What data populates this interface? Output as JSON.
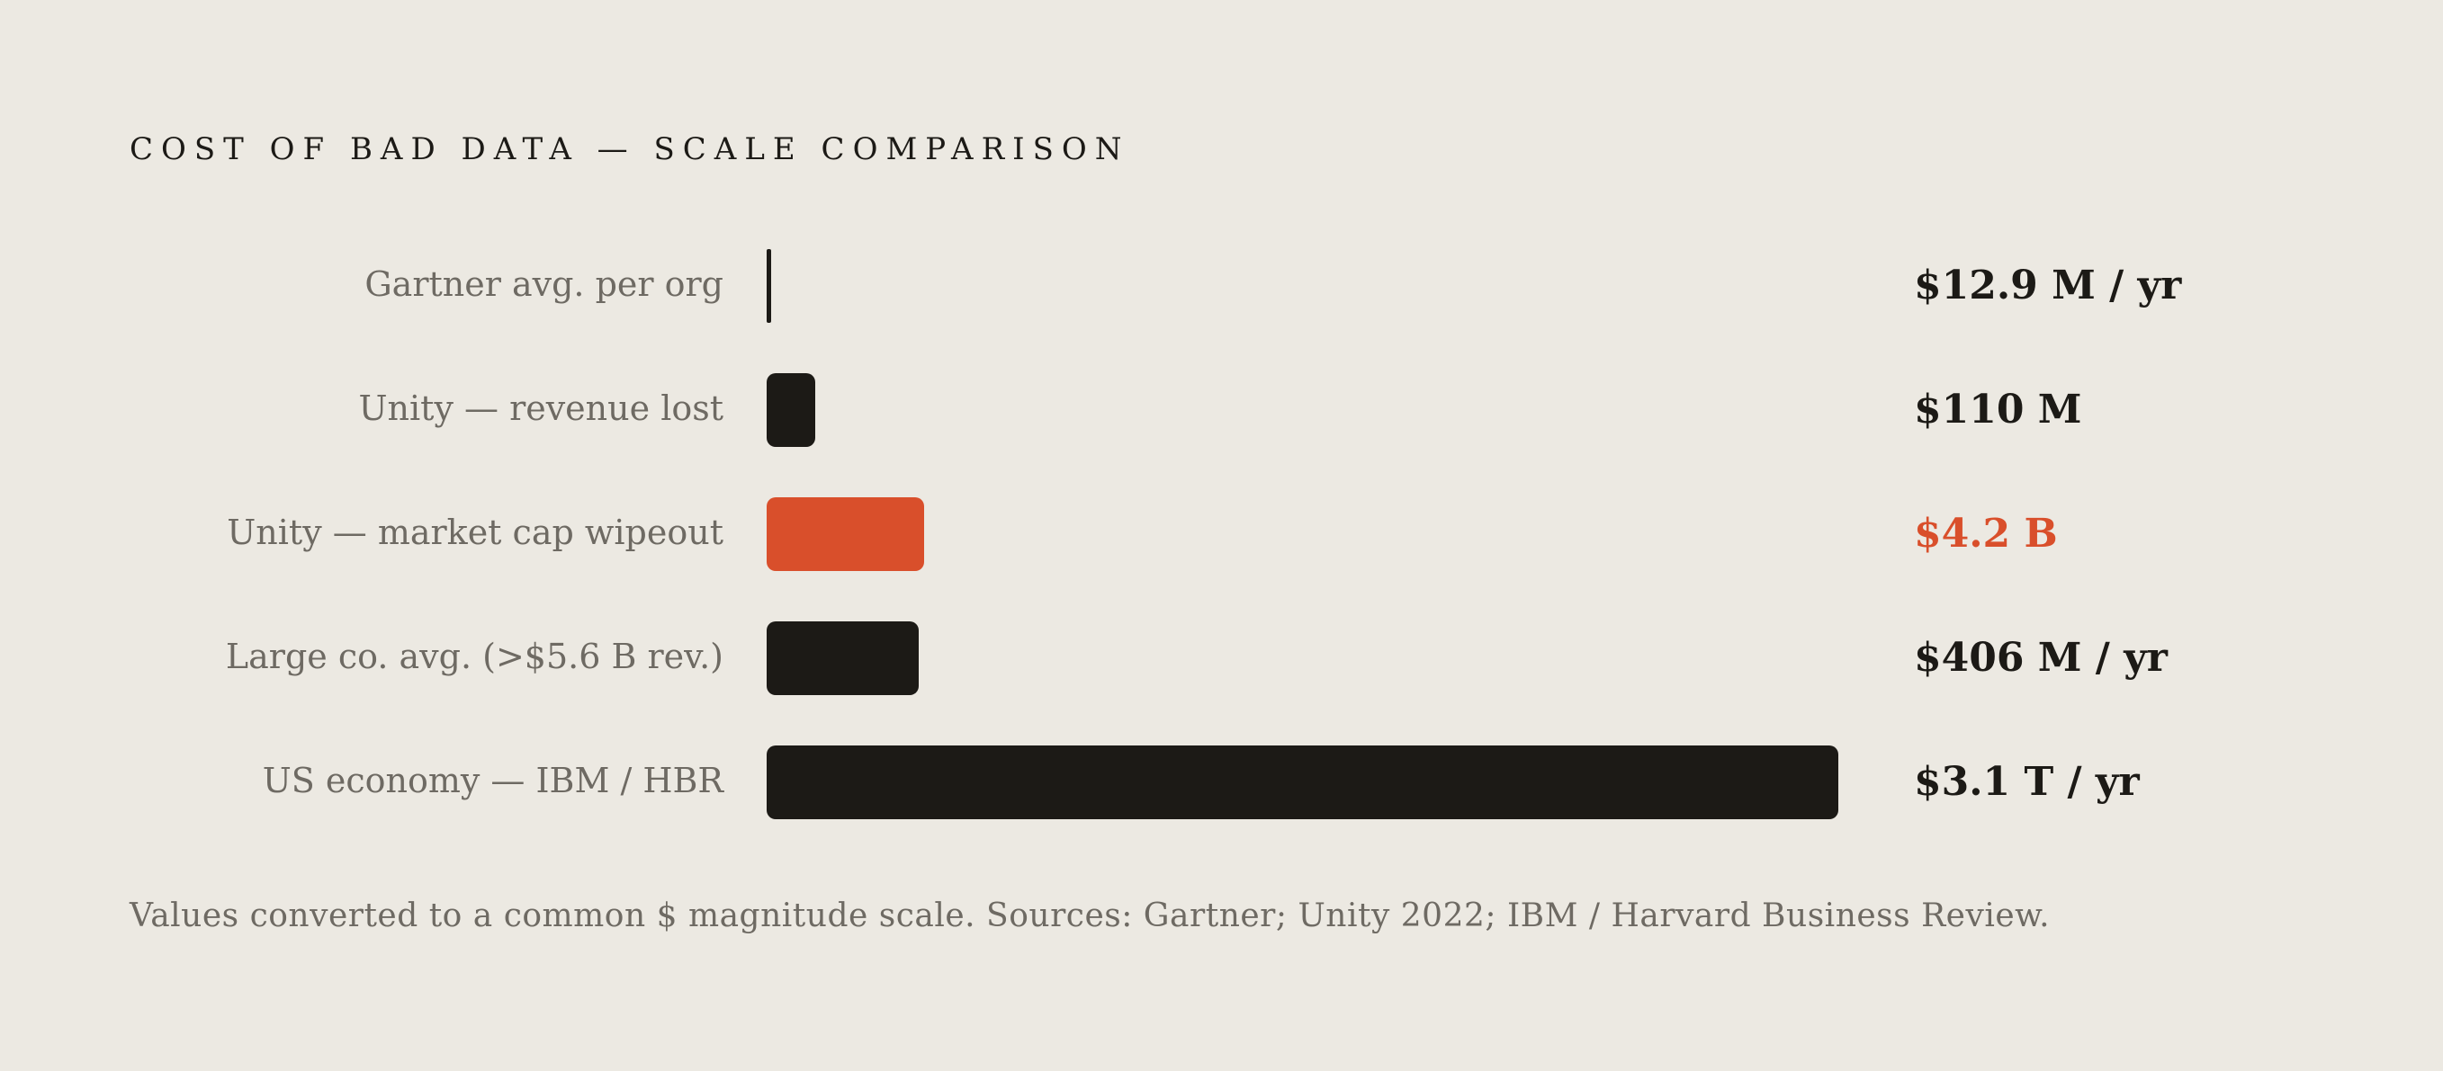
{
  "chart_data": {
    "type": "bar",
    "orientation": "horizontal",
    "title": "COST OF BAD DATA — SCALE COMPARISON",
    "categories": [
      "Gartner avg. per org",
      "Unity — revenue lost",
      "Unity — market cap wipeout",
      "Large co. avg. (>$5.6 B rev.)",
      "US economy — IBM / HBR"
    ],
    "values_usd": [
      12900000,
      110000000,
      4200000000,
      406000000,
      3100000000000
    ],
    "value_labels": [
      "$12.9 M / yr",
      "$110 M",
      "$4.2 B",
      "$406 M / yr",
      "$3.1 T / yr"
    ],
    "magnitude_scale": [
      0.9,
      4.5,
      14.7,
      14.2,
      100
    ],
    "highlight_index": 2,
    "colors": {
      "default": "#1C1A16",
      "highlight": "#D94F2B"
    },
    "footnote": "Values converted to a common $ magnitude scale. Sources: Gartner; Unity 2022; IBM / Harvard Business Review."
  }
}
